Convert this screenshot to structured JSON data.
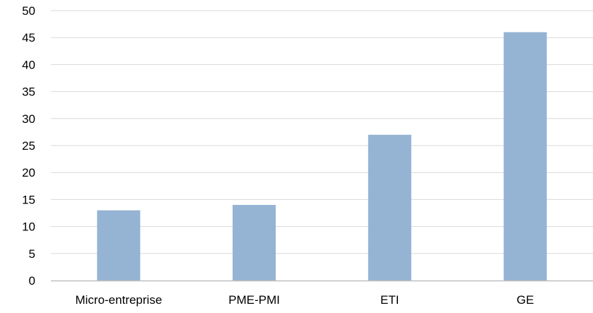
{
  "colors": {
    "bar": "#95b3d3",
    "gridline": "#d9d9d9",
    "axis": "#bfbfbf",
    "text": "#000000"
  },
  "chart_data": {
    "type": "bar",
    "title": "",
    "xlabel": "",
    "ylabel": "",
    "categories": [
      "Micro-entreprise",
      "PME-PMI",
      "ETI",
      "GE"
    ],
    "values": [
      13,
      14,
      27,
      46
    ],
    "ylim": [
      0,
      50
    ],
    "yticks": [
      0,
      5,
      10,
      15,
      20,
      25,
      30,
      35,
      40,
      45,
      50
    ],
    "grid": true,
    "legend": "none"
  }
}
